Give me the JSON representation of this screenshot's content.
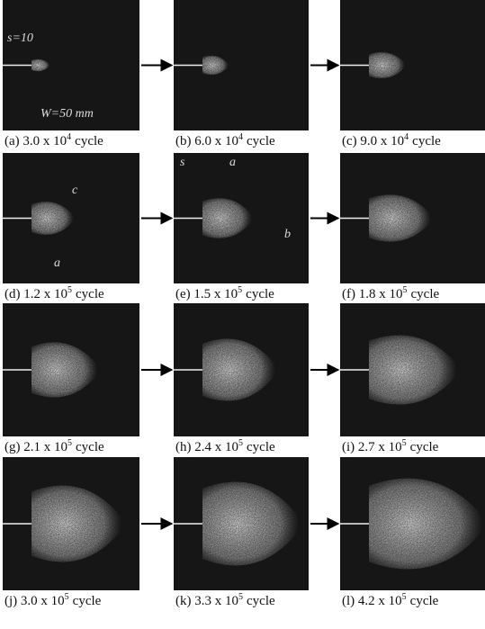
{
  "panels": [
    {
      "caption": {
        "text": "(a) 3.0 x 10",
        "exponent": "4",
        "unit": "cycle"
      },
      "annotations": [
        "s=10",
        "W=50 mm"
      ]
    },
    {
      "caption": {
        "text": "(b) 6.0 x 10",
        "exponent": "4",
        "unit": "cycle"
      }
    },
    {
      "caption": {
        "text": "(c) 9.0 x 10",
        "exponent": "4",
        "unit": "cycle"
      }
    },
    {
      "caption": {
        "text": "(d) 1.2 x 10",
        "exponent": "5",
        "unit": "cycle"
      },
      "annotations": [
        "c",
        "a"
      ]
    },
    {
      "caption": {
        "text": "(e) 1.5 x 10",
        "exponent": "5",
        "unit": "cycle"
      },
      "annotations": [
        "s",
        "a",
        "b"
      ]
    },
    {
      "caption": {
        "text": "(f) 1.8 x 10",
        "exponent": "5",
        "unit": "cycle"
      }
    },
    {
      "caption": {
        "text": "(g) 2.1 x 10",
        "exponent": "5",
        "unit": "cycle"
      }
    },
    {
      "caption": {
        "text": "(h) 2.4 x 10",
        "exponent": "5",
        "unit": "cycle"
      }
    },
    {
      "caption": {
        "text": "(i) 2.7 x 10",
        "exponent": "5",
        "unit": "cycle"
      }
    },
    {
      "caption": {
        "text": "(j) 3.0 x 10",
        "exponent": "5",
        "unit": "cycle"
      }
    },
    {
      "caption": {
        "text": "(k) 3.3 x 10",
        "exponent": "5",
        "unit": "cycle"
      }
    },
    {
      "caption": {
        "text": "(l) 4.2 x 10",
        "exponent": "5",
        "unit": "cycle"
      }
    }
  ]
}
